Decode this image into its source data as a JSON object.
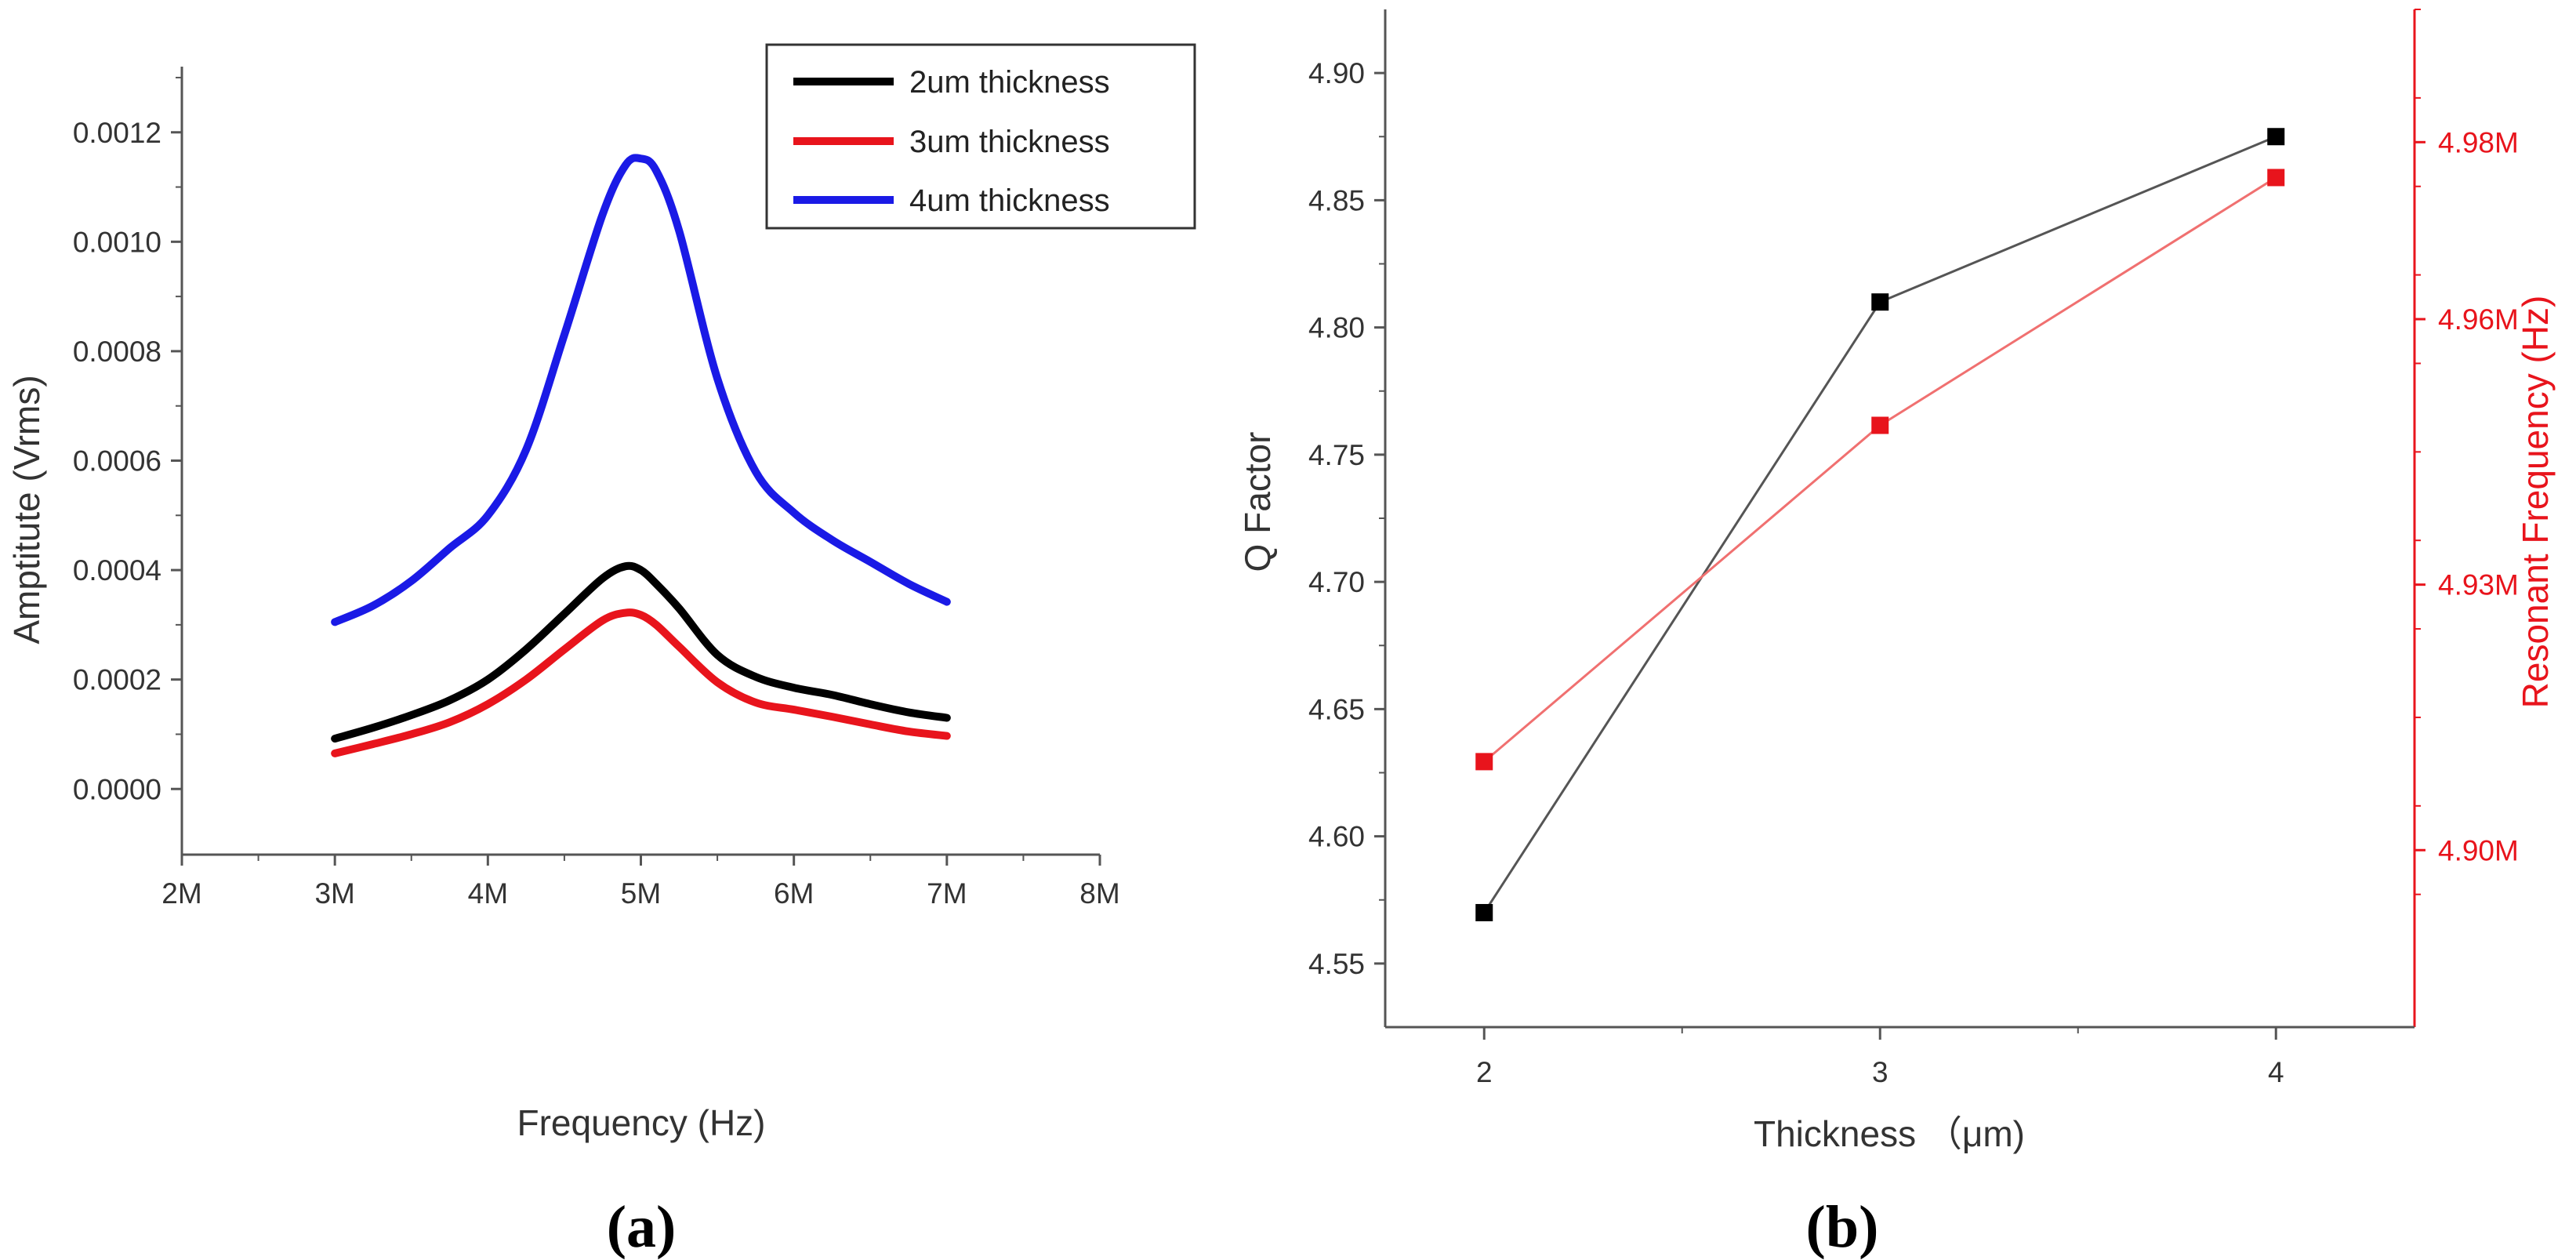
{
  "chart_data": [
    {
      "type": "line",
      "panel_label": "(a)",
      "xlabel": "Frequency (Hz)",
      "ylabel": "Amptitute (Vrms)",
      "xlim": [
        2000000,
        8000000
      ],
      "ylim": [
        -0.00012,
        0.00132
      ],
      "x_ticks": [
        2000000,
        3000000,
        4000000,
        5000000,
        6000000,
        7000000,
        8000000
      ],
      "x_tick_labels": [
        "2M",
        "3M",
        "4M",
        "5M",
        "6M",
        "7M",
        "8M"
      ],
      "y_ticks": [
        0,
        0.0002,
        0.0004,
        0.0006,
        0.0008,
        0.001,
        0.0012
      ],
      "y_tick_labels": [
        "0.0000",
        "0.0002",
        "0.0004",
        "0.0006",
        "0.0008",
        "0.0010",
        "0.0012"
      ],
      "legend_position": "top-right",
      "x": [
        3000000,
        3250000,
        3500000,
        3750000,
        4000000,
        4250000,
        4500000,
        4750000,
        4900000,
        5000000,
        5100000,
        5250000,
        5500000,
        5750000,
        6000000,
        6250000,
        6500000,
        6750000,
        7000000
      ],
      "series": [
        {
          "name": "2um thickness",
          "color": "#000000",
          "values": [
            9.2e-05,
            0.000112,
            0.000135,
            0.000162,
            0.0002,
            0.000255,
            0.00032,
            0.000385,
            0.000407,
            0.0004,
            0.000375,
            0.00033,
            0.000245,
            0.000205,
            0.000185,
            0.000172,
            0.000155,
            0.00014,
            0.00013
          ]
        },
        {
          "name": "3um thickness",
          "color": "#e8141c",
          "values": [
            6.5e-05,
            8.2e-05,
            0.0001,
            0.000122,
            0.000155,
            0.0002,
            0.000255,
            0.000308,
            0.000322,
            0.000318,
            0.0003,
            0.00026,
            0.000195,
            0.000158,
            0.000145,
            0.000132,
            0.000118,
            0.000105,
            9.7e-05
          ]
        },
        {
          "name": "4um thickness",
          "color": "#1a1ae6",
          "values": [
            0.000305,
            0.000335,
            0.00038,
            0.00044,
            0.0005,
            0.00062,
            0.00083,
            0.00105,
            0.00114,
            0.001152,
            0.00113,
            0.00102,
            0.00075,
            0.00058,
            0.000505,
            0.000455,
            0.000415,
            0.000375,
            0.000342
          ]
        }
      ]
    },
    {
      "type": "line",
      "panel_label": "(b)",
      "xlabel": "Thickness （μm)",
      "ylabel": "Q Factor",
      "y2label": "Resonant Frequency (Hz)",
      "xlim": [
        1.75,
        4.35
      ],
      "ylim": [
        4.525,
        4.925
      ],
      "y2lim": [
        4.88,
        4.995
      ],
      "x_ticks": [
        2,
        3,
        4
      ],
      "x_tick_labels": [
        "2",
        "3",
        "4"
      ],
      "y_ticks": [
        4.55,
        4.6,
        4.65,
        4.7,
        4.75,
        4.8,
        4.85,
        4.9
      ],
      "y_tick_labels": [
        "4.55",
        "4.60",
        "4.65",
        "4.70",
        "4.75",
        "4.80",
        "4.85",
        "4.90"
      ],
      "y2_ticks": [
        4.9,
        4.93,
        4.96,
        4.98
      ],
      "y2_tick_labels": [
        "4.90M",
        "4.93M",
        "4.96M",
        "4.98M"
      ],
      "x": [
        2,
        3,
        4
      ],
      "series": [
        {
          "axis": "left",
          "color": "#000000",
          "line_color": "#555555",
          "values": [
            4.57,
            4.81,
            4.875
          ]
        },
        {
          "axis": "right",
          "color": "#e8141c",
          "line_color": "#f07070",
          "values": [
            4.91,
            4.948,
            4.976
          ]
        }
      ]
    }
  ]
}
